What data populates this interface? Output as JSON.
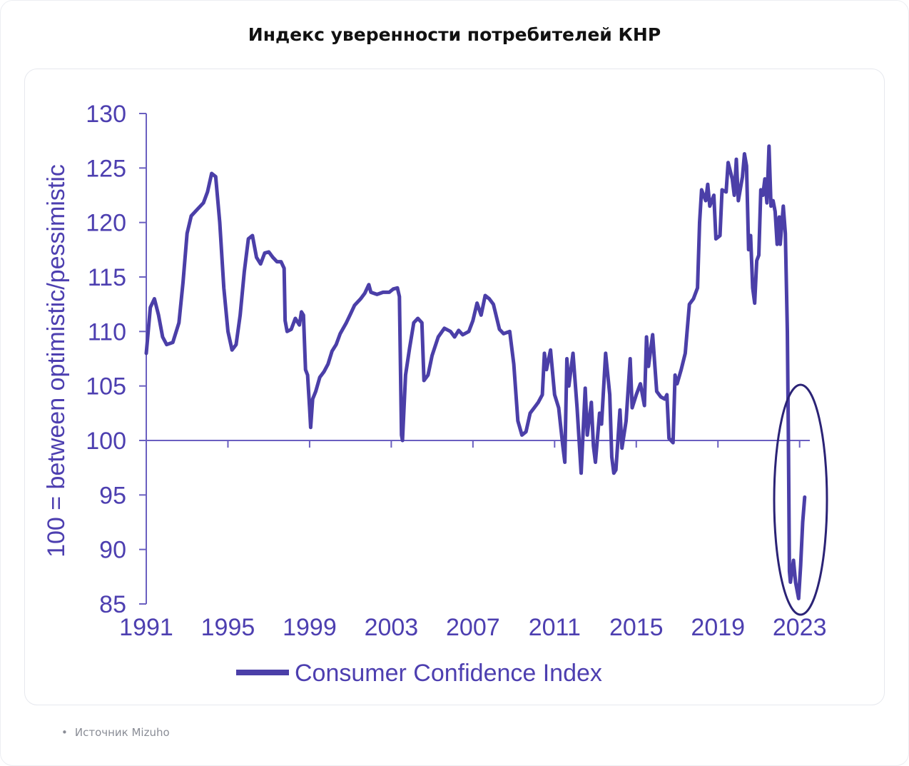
{
  "page": {
    "title": "Индекс уверенности потребителей КНР",
    "source_label": "Источник Mizuho"
  },
  "colors": {
    "series": "#4b3fa8",
    "axis": "#6a5fc0",
    "text": "#4d3fb0",
    "ellipse": "#2b2376"
  },
  "chart_data": {
    "type": "line",
    "ylabel": "100 = between optimistic/pessimistic",
    "xlabel": "",
    "ylim": [
      85,
      130
    ],
    "xlim": [
      1991,
      2023.5
    ],
    "y_ticks": [
      85,
      90,
      95,
      100,
      105,
      110,
      115,
      120,
      125,
      130
    ],
    "x_ticks": [
      1991,
      1995,
      1999,
      2003,
      2007,
      2011,
      2015,
      2019,
      2023
    ],
    "reference_line": 100,
    "legend_position": "bottom",
    "grid": false,
    "annotation": "ellipse highlighting 2022–2023 decline",
    "series": [
      {
        "name": "Consumer Confidence Index",
        "points": [
          [
            1991.0,
            108.0
          ],
          [
            1991.2,
            112.2
          ],
          [
            1991.4,
            113.0
          ],
          [
            1991.6,
            111.5
          ],
          [
            1991.8,
            109.5
          ],
          [
            1992.0,
            108.8
          ],
          [
            1992.3,
            109.0
          ],
          [
            1992.6,
            110.8
          ],
          [
            1992.8,
            114.5
          ],
          [
            1993.0,
            119.0
          ],
          [
            1993.2,
            120.6
          ],
          [
            1993.5,
            121.2
          ],
          [
            1993.8,
            121.8
          ],
          [
            1994.0,
            122.8
          ],
          [
            1994.2,
            124.5
          ],
          [
            1994.4,
            124.2
          ],
          [
            1994.6,
            120.0
          ],
          [
            1994.8,
            114.0
          ],
          [
            1995.0,
            110.0
          ],
          [
            1995.2,
            108.3
          ],
          [
            1995.4,
            108.8
          ],
          [
            1995.6,
            111.5
          ],
          [
            1995.8,
            115.5
          ],
          [
            1996.0,
            118.5
          ],
          [
            1996.2,
            118.8
          ],
          [
            1996.4,
            116.8
          ],
          [
            1996.6,
            116.2
          ],
          [
            1996.8,
            117.2
          ],
          [
            1997.0,
            117.3
          ],
          [
            1997.2,
            116.8
          ],
          [
            1997.4,
            116.4
          ],
          [
            1997.6,
            116.4
          ],
          [
            1997.75,
            115.8
          ],
          [
            1997.8,
            111.0
          ],
          [
            1997.9,
            110.0
          ],
          [
            1998.1,
            110.2
          ],
          [
            1998.3,
            111.2
          ],
          [
            1998.5,
            110.6
          ],
          [
            1998.6,
            111.8
          ],
          [
            1998.7,
            111.5
          ],
          [
            1998.8,
            106.5
          ],
          [
            1998.9,
            106.0
          ],
          [
            1999.0,
            103.0
          ],
          [
            1999.05,
            101.2
          ],
          [
            1999.15,
            103.8
          ],
          [
            1999.3,
            104.5
          ],
          [
            1999.5,
            105.8
          ],
          [
            1999.7,
            106.3
          ],
          [
            1999.9,
            107.0
          ],
          [
            2000.1,
            108.2
          ],
          [
            2000.3,
            108.8
          ],
          [
            2000.5,
            109.8
          ],
          [
            2000.8,
            110.8
          ],
          [
            2001.0,
            111.6
          ],
          [
            2001.2,
            112.4
          ],
          [
            2001.5,
            113.0
          ],
          [
            2001.7,
            113.5
          ],
          [
            2001.9,
            114.3
          ],
          [
            2002.0,
            113.6
          ],
          [
            2002.3,
            113.4
          ],
          [
            2002.6,
            113.6
          ],
          [
            2002.9,
            113.6
          ],
          [
            2003.1,
            113.9
          ],
          [
            2003.3,
            114.0
          ],
          [
            2003.4,
            113.2
          ],
          [
            2003.5,
            100.5
          ],
          [
            2003.55,
            100.0
          ],
          [
            2003.7,
            106.0
          ],
          [
            2003.9,
            108.5
          ],
          [
            2004.1,
            110.8
          ],
          [
            2004.3,
            111.2
          ],
          [
            2004.5,
            110.8
          ],
          [
            2004.6,
            105.5
          ],
          [
            2004.8,
            106.0
          ],
          [
            2005.0,
            107.8
          ],
          [
            2005.3,
            109.5
          ],
          [
            2005.6,
            110.3
          ],
          [
            2005.9,
            110.0
          ],
          [
            2006.1,
            109.5
          ],
          [
            2006.3,
            110.1
          ],
          [
            2006.5,
            109.7
          ],
          [
            2006.8,
            110.0
          ],
          [
            2007.0,
            111.0
          ],
          [
            2007.2,
            112.6
          ],
          [
            2007.4,
            111.5
          ],
          [
            2007.6,
            113.3
          ],
          [
            2007.8,
            113.0
          ],
          [
            2008.0,
            112.5
          ],
          [
            2008.3,
            110.2
          ],
          [
            2008.5,
            109.8
          ],
          [
            2008.8,
            110.0
          ],
          [
            2009.0,
            107.0
          ],
          [
            2009.2,
            101.8
          ],
          [
            2009.4,
            100.5
          ],
          [
            2009.6,
            100.8
          ],
          [
            2009.8,
            102.5
          ],
          [
            2010.0,
            103.0
          ],
          [
            2010.2,
            103.5
          ],
          [
            2010.4,
            104.2
          ],
          [
            2010.5,
            108.0
          ],
          [
            2010.6,
            106.5
          ],
          [
            2010.8,
            108.3
          ],
          [
            2011.0,
            104.2
          ],
          [
            2011.2,
            103.0
          ],
          [
            2011.4,
            99.5
          ],
          [
            2011.5,
            98.0
          ],
          [
            2011.6,
            107.5
          ],
          [
            2011.7,
            105.0
          ],
          [
            2011.9,
            108.0
          ],
          [
            2012.1,
            103.0
          ],
          [
            2012.3,
            97.0
          ],
          [
            2012.5,
            104.8
          ],
          [
            2012.6,
            100.5
          ],
          [
            2012.8,
            103.5
          ],
          [
            2012.9,
            99.5
          ],
          [
            2013.0,
            98.0
          ],
          [
            2013.2,
            102.5
          ],
          [
            2013.3,
            101.5
          ],
          [
            2013.5,
            108.0
          ],
          [
            2013.7,
            104.2
          ],
          [
            2013.8,
            98.5
          ],
          [
            2013.9,
            97.0
          ],
          [
            2014.0,
            97.3
          ],
          [
            2014.2,
            102.8
          ],
          [
            2014.3,
            99.3
          ],
          [
            2014.5,
            101.8
          ],
          [
            2014.7,
            107.5
          ],
          [
            2014.8,
            103.0
          ],
          [
            2015.0,
            104.2
          ],
          [
            2015.2,
            105.2
          ],
          [
            2015.4,
            103.2
          ],
          [
            2015.5,
            109.5
          ],
          [
            2015.6,
            106.8
          ],
          [
            2015.8,
            109.7
          ],
          [
            2016.0,
            104.5
          ],
          [
            2016.2,
            104.0
          ],
          [
            2016.4,
            103.8
          ],
          [
            2016.5,
            104.2
          ],
          [
            2016.6,
            100.2
          ],
          [
            2016.8,
            99.8
          ],
          [
            2016.9,
            106.0
          ],
          [
            2017.0,
            105.2
          ],
          [
            2017.2,
            106.5
          ],
          [
            2017.4,
            108.0
          ],
          [
            2017.6,
            112.5
          ],
          [
            2017.8,
            113.0
          ],
          [
            2018.0,
            114.0
          ],
          [
            2018.1,
            120.0
          ],
          [
            2018.2,
            123.0
          ],
          [
            2018.4,
            122.0
          ],
          [
            2018.5,
            123.5
          ],
          [
            2018.6,
            121.5
          ],
          [
            2018.8,
            122.5
          ],
          [
            2018.9,
            118.5
          ],
          [
            2019.1,
            118.8
          ],
          [
            2019.2,
            123.0
          ],
          [
            2019.4,
            122.8
          ],
          [
            2019.5,
            125.5
          ],
          [
            2019.7,
            124.0
          ],
          [
            2019.8,
            122.5
          ],
          [
            2019.9,
            125.8
          ],
          [
            2020.0,
            122.0
          ],
          [
            2020.2,
            124.2
          ],
          [
            2020.3,
            126.3
          ],
          [
            2020.4,
            125.2
          ],
          [
            2020.5,
            117.5
          ],
          [
            2020.6,
            118.8
          ],
          [
            2020.7,
            114.0
          ],
          [
            2020.8,
            112.6
          ],
          [
            2020.9,
            116.5
          ],
          [
            2021.0,
            117.0
          ],
          [
            2021.1,
            123.0
          ],
          [
            2021.2,
            122.5
          ],
          [
            2021.3,
            124.0
          ],
          [
            2021.4,
            121.8
          ],
          [
            2021.5,
            127.0
          ],
          [
            2021.6,
            121.5
          ],
          [
            2021.7,
            122.0
          ],
          [
            2021.8,
            121.0
          ],
          [
            2021.9,
            118.0
          ],
          [
            2022.0,
            120.5
          ],
          [
            2022.05,
            118.0
          ],
          [
            2022.2,
            121.5
          ],
          [
            2022.3,
            119.0
          ],
          [
            2022.4,
            110.0
          ],
          [
            2022.45,
            100.0
          ],
          [
            2022.5,
            88.0
          ],
          [
            2022.55,
            87.0
          ],
          [
            2022.7,
            89.0
          ],
          [
            2022.8,
            87.0
          ],
          [
            2022.95,
            85.5
          ],
          [
            2023.05,
            88.5
          ],
          [
            2023.15,
            92.5
          ],
          [
            2023.25,
            94.8
          ]
        ]
      }
    ]
  }
}
